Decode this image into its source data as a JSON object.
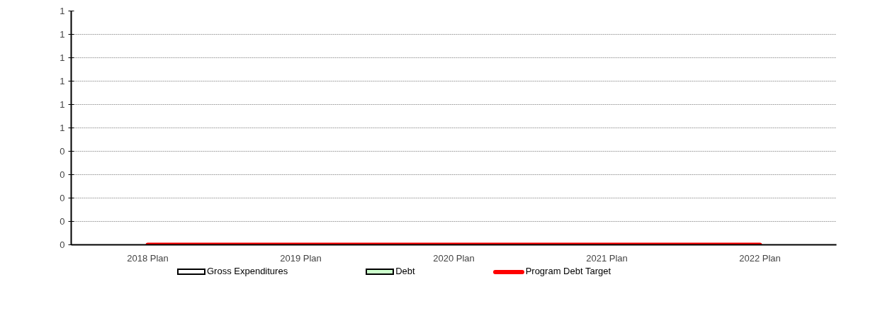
{
  "chart_data": {
    "type": "bar",
    "categories": [
      "2018 Plan",
      "2019 Plan",
      "2020 Plan",
      "2021 Plan",
      "2022 Plan"
    ],
    "series": [
      {
        "name": "Gross Expenditures",
        "color": "#ffffff",
        "values": [
          0,
          0,
          0,
          0,
          0
        ]
      },
      {
        "name": "Debt",
        "color": "#ccffcc",
        "values": [
          0,
          0,
          0,
          0,
          0
        ]
      },
      {
        "name": "Program Debt Target",
        "type": "line",
        "color": "#ff0000",
        "values": [
          0,
          0,
          0,
          0,
          0
        ]
      }
    ],
    "ylim": [
      0,
      1
    ],
    "yticks": [
      {
        "value": 0,
        "label": "0"
      },
      {
        "value": 0.1,
        "label": "0"
      },
      {
        "value": 0.2,
        "label": "0"
      },
      {
        "value": 0.3,
        "label": "0"
      },
      {
        "value": 0.4,
        "label": "0"
      },
      {
        "value": 0.5,
        "label": "1"
      },
      {
        "value": 0.6,
        "label": "1"
      },
      {
        "value": 0.7,
        "label": "1"
      },
      {
        "value": 0.8,
        "label": "1"
      },
      {
        "value": 0.9,
        "label": "1"
      },
      {
        "value": 1,
        "label": "1"
      }
    ],
    "grid": "y",
    "legend": "bottom"
  }
}
